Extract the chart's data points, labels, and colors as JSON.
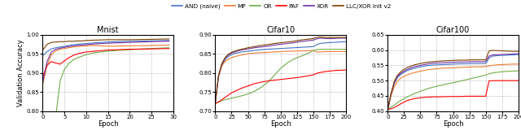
{
  "legend_labels": [
    "AND (naive)",
    "MP",
    "OR",
    "PAF",
    "XOR",
    "LLC/XOR init v2"
  ],
  "legend_colors": [
    "#4472c4",
    "#ed7d31",
    "#70ad47",
    "#ff0000",
    "#7030a0",
    "#7b3f00"
  ],
  "subplot_titles": [
    "Mnist",
    "Cifar10",
    "Cifar100"
  ],
  "ylabel": "Validation Accuracy",
  "xlabel": "Epoch",
  "mnist": {
    "xlim": [
      0,
      30
    ],
    "ylim": [
      0.8,
      1.0
    ],
    "xticks": [
      0,
      5,
      10,
      15,
      20,
      25,
      30
    ],
    "yticks": [
      0.8,
      0.85,
      0.9,
      0.95,
      1.0
    ],
    "curves": {
      "AND": {
        "x": [
          -1,
          0,
          1,
          2,
          3,
          4,
          5,
          6,
          7,
          8,
          9,
          10,
          12,
          15,
          20,
          25,
          29
        ],
        "y": [
          0.92,
          0.945,
          0.956,
          0.963,
          0.966,
          0.968,
          0.97,
          0.972,
          0.974,
          0.975,
          0.976,
          0.977,
          0.979,
          0.981,
          0.983,
          0.984,
          0.985
        ]
      },
      "MP": {
        "x": [
          -1,
          0,
          1,
          2,
          3,
          4,
          5,
          6,
          7,
          8,
          9,
          10,
          12,
          15,
          20,
          25,
          29
        ],
        "y": [
          0.82,
          0.87,
          0.92,
          0.948,
          0.958,
          0.962,
          0.964,
          0.966,
          0.968,
          0.969,
          0.97,
          0.971,
          0.972,
          0.97,
          0.971,
          0.972,
          0.973
        ]
      },
      "OR": {
        "x": [
          -1,
          0,
          1,
          2,
          3,
          4,
          5,
          6,
          7,
          8,
          9,
          10,
          12,
          15,
          20,
          25,
          29
        ],
        "y": [
          0.62,
          0.61,
          0.605,
          0.6,
          0.787,
          0.88,
          0.91,
          0.925,
          0.934,
          0.94,
          0.944,
          0.948,
          0.953,
          0.957,
          0.961,
          0.964,
          0.966
        ]
      },
      "PAF": {
        "x": [
          -1,
          0,
          1,
          2,
          3,
          4,
          5,
          6,
          7,
          8,
          9,
          10,
          12,
          15,
          20,
          25,
          29
        ],
        "y": [
          0.85,
          0.89,
          0.92,
          0.93,
          0.926,
          0.923,
          0.932,
          0.94,
          0.946,
          0.95,
          0.953,
          0.955,
          0.957,
          0.96,
          0.962,
          0.963,
          0.964
        ]
      },
      "XOR": {
        "x": [
          -1,
          0,
          1,
          2,
          3,
          4,
          5,
          6,
          7,
          8,
          9,
          10,
          12,
          15,
          20,
          25,
          29
        ],
        "y": [
          0.825,
          0.875,
          0.93,
          0.955,
          0.962,
          0.965,
          0.967,
          0.969,
          0.971,
          0.972,
          0.973,
          0.974,
          0.976,
          0.978,
          0.98,
          0.982,
          0.983
        ]
      },
      "LLC": {
        "x": [
          -1,
          0,
          1,
          2,
          3,
          4,
          5,
          6,
          7,
          8,
          9,
          10,
          12,
          15,
          20,
          25,
          29
        ],
        "y": [
          0.92,
          0.96,
          0.975,
          0.98,
          0.981,
          0.982,
          0.982,
          0.983,
          0.983,
          0.984,
          0.984,
          0.985,
          0.986,
          0.987,
          0.987,
          0.988,
          0.989
        ]
      }
    }
  },
  "cifar10": {
    "xlim": [
      0,
      200
    ],
    "ylim": [
      0.7,
      0.9
    ],
    "xticks": [
      0,
      25,
      50,
      75,
      100,
      125,
      150,
      175,
      200
    ],
    "yticks": [
      0.7,
      0.75,
      0.8,
      0.85,
      0.9
    ],
    "curves": {
      "AND": {
        "x": [
          0,
          5,
          10,
          15,
          20,
          25,
          30,
          35,
          40,
          50,
          60,
          70,
          80,
          90,
          100,
          110,
          120,
          130,
          140,
          150,
          155,
          160,
          170,
          180,
          190,
          200
        ],
        "y": [
          0.72,
          0.79,
          0.82,
          0.835,
          0.843,
          0.848,
          0.851,
          0.853,
          0.855,
          0.857,
          0.859,
          0.861,
          0.862,
          0.863,
          0.864,
          0.865,
          0.866,
          0.867,
          0.868,
          0.869,
          0.874,
          0.877,
          0.879,
          0.88,
          0.881,
          0.882
        ]
      },
      "MP": {
        "x": [
          0,
          5,
          10,
          15,
          20,
          25,
          30,
          35,
          40,
          50,
          60,
          70,
          80,
          90,
          100,
          110,
          120,
          130,
          140,
          150,
          155,
          160,
          170,
          180,
          190,
          200
        ],
        "y": [
          0.72,
          0.79,
          0.818,
          0.83,
          0.836,
          0.84,
          0.843,
          0.845,
          0.847,
          0.85,
          0.852,
          0.853,
          0.854,
          0.855,
          0.856,
          0.857,
          0.857,
          0.858,
          0.858,
          0.859,
          0.855,
          0.855,
          0.856,
          0.856,
          0.856,
          0.856
        ]
      },
      "OR": {
        "x": [
          0,
          5,
          10,
          15,
          20,
          25,
          30,
          35,
          40,
          50,
          60,
          70,
          80,
          90,
          100,
          110,
          120,
          130,
          140,
          150,
          155,
          160,
          170,
          180,
          190,
          200
        ],
        "y": [
          0.72,
          0.724,
          0.728,
          0.73,
          0.732,
          0.734,
          0.736,
          0.738,
          0.74,
          0.745,
          0.752,
          0.762,
          0.775,
          0.793,
          0.812,
          0.826,
          0.836,
          0.843,
          0.85,
          0.858,
          0.861,
          0.862,
          0.862,
          0.862,
          0.862,
          0.862
        ]
      },
      "PAF": {
        "x": [
          0,
          5,
          10,
          15,
          20,
          25,
          30,
          35,
          40,
          50,
          60,
          70,
          80,
          90,
          100,
          110,
          120,
          130,
          140,
          150,
          155,
          160,
          170,
          180,
          190,
          200
        ],
        "y": [
          0.72,
          0.724,
          0.73,
          0.736,
          0.742,
          0.748,
          0.752,
          0.756,
          0.76,
          0.766,
          0.772,
          0.776,
          0.779,
          0.781,
          0.783,
          0.785,
          0.787,
          0.789,
          0.792,
          0.795,
          0.799,
          0.801,
          0.804,
          0.806,
          0.807,
          0.808
        ]
      },
      "XOR": {
        "x": [
          0,
          5,
          10,
          15,
          20,
          25,
          30,
          35,
          40,
          50,
          60,
          70,
          80,
          90,
          100,
          110,
          120,
          130,
          140,
          150,
          155,
          160,
          170,
          180,
          190,
          200
        ],
        "y": [
          0.72,
          0.792,
          0.822,
          0.838,
          0.847,
          0.852,
          0.855,
          0.858,
          0.86,
          0.863,
          0.866,
          0.868,
          0.87,
          0.873,
          0.875,
          0.877,
          0.879,
          0.882,
          0.884,
          0.886,
          0.889,
          0.891,
          0.89,
          0.89,
          0.891,
          0.891
        ]
      },
      "LLC": {
        "x": [
          0,
          5,
          10,
          15,
          20,
          25,
          30,
          35,
          40,
          50,
          60,
          70,
          80,
          90,
          100,
          110,
          120,
          130,
          140,
          150,
          155,
          160,
          170,
          180,
          190,
          200
        ],
        "y": [
          0.72,
          0.793,
          0.824,
          0.84,
          0.849,
          0.854,
          0.857,
          0.86,
          0.862,
          0.866,
          0.869,
          0.872,
          0.874,
          0.877,
          0.879,
          0.881,
          0.883,
          0.886,
          0.888,
          0.89,
          0.893,
          0.894,
          0.893,
          0.893,
          0.893,
          0.893
        ]
      }
    }
  },
  "cifar100": {
    "xlim": [
      0,
      200
    ],
    "ylim": [
      0.4,
      0.65
    ],
    "xticks": [
      0,
      25,
      50,
      75,
      100,
      125,
      150,
      175,
      200
    ],
    "yticks": [
      0.4,
      0.45,
      0.5,
      0.55,
      0.6,
      0.65
    ],
    "curves": {
      "AND": {
        "x": [
          0,
          5,
          10,
          15,
          20,
          25,
          30,
          40,
          50,
          60,
          70,
          80,
          90,
          100,
          110,
          120,
          130,
          140,
          150,
          155,
          160,
          170,
          180,
          190,
          200
        ],
        "y": [
          0.405,
          0.455,
          0.49,
          0.51,
          0.52,
          0.527,
          0.533,
          0.54,
          0.545,
          0.549,
          0.551,
          0.552,
          0.553,
          0.554,
          0.555,
          0.555,
          0.556,
          0.556,
          0.556,
          0.574,
          0.58,
          0.582,
          0.583,
          0.584,
          0.585
        ]
      },
      "MP": {
        "x": [
          0,
          5,
          10,
          15,
          20,
          25,
          30,
          40,
          50,
          60,
          70,
          80,
          90,
          100,
          110,
          120,
          130,
          140,
          150,
          155,
          160,
          170,
          180,
          190,
          200
        ],
        "y": [
          0.405,
          0.45,
          0.48,
          0.498,
          0.508,
          0.514,
          0.519,
          0.526,
          0.531,
          0.535,
          0.538,
          0.54,
          0.541,
          0.542,
          0.543,
          0.544,
          0.545,
          0.545,
          0.546,
          0.548,
          0.55,
          0.552,
          0.553,
          0.554,
          0.554
        ]
      },
      "OR": {
        "x": [
          0,
          5,
          10,
          15,
          20,
          25,
          30,
          40,
          50,
          60,
          70,
          80,
          90,
          100,
          110,
          120,
          130,
          140,
          150,
          155,
          160,
          170,
          180,
          190,
          200
        ],
        "y": [
          0.405,
          0.413,
          0.42,
          0.428,
          0.435,
          0.441,
          0.447,
          0.457,
          0.465,
          0.473,
          0.479,
          0.484,
          0.489,
          0.493,
          0.498,
          0.503,
          0.508,
          0.513,
          0.518,
          0.522,
          0.525,
          0.528,
          0.53,
          0.531,
          0.532
        ]
      },
      "PAF": {
        "x": [
          0,
          5,
          10,
          15,
          20,
          25,
          30,
          40,
          50,
          60,
          70,
          80,
          90,
          100,
          110,
          120,
          130,
          140,
          150,
          155,
          160,
          170,
          180,
          190,
          200
        ],
        "y": [
          0.405,
          0.408,
          0.412,
          0.418,
          0.424,
          0.43,
          0.435,
          0.441,
          0.444,
          0.446,
          0.447,
          0.447,
          0.448,
          0.448,
          0.448,
          0.449,
          0.449,
          0.449,
          0.449,
          0.499,
          0.5,
          0.5,
          0.5,
          0.5,
          0.5
        ]
      },
      "XOR": {
        "x": [
          0,
          5,
          10,
          15,
          20,
          25,
          30,
          40,
          50,
          60,
          70,
          80,
          90,
          100,
          110,
          120,
          130,
          140,
          150,
          155,
          160,
          170,
          180,
          190,
          200
        ],
        "y": [
          0.405,
          0.455,
          0.493,
          0.514,
          0.524,
          0.531,
          0.537,
          0.545,
          0.55,
          0.554,
          0.557,
          0.558,
          0.559,
          0.56,
          0.561,
          0.561,
          0.562,
          0.562,
          0.562,
          0.58,
          0.584,
          0.585,
          0.586,
          0.587,
          0.588
        ]
      },
      "LLC": {
        "x": [
          0,
          5,
          10,
          15,
          20,
          25,
          30,
          40,
          50,
          60,
          70,
          80,
          90,
          100,
          110,
          120,
          130,
          140,
          150,
          155,
          160,
          170,
          180,
          190,
          200
        ],
        "y": [
          0.405,
          0.458,
          0.497,
          0.518,
          0.529,
          0.537,
          0.543,
          0.551,
          0.556,
          0.56,
          0.562,
          0.564,
          0.565,
          0.566,
          0.567,
          0.567,
          0.568,
          0.568,
          0.568,
          0.597,
          0.599,
          0.598,
          0.597,
          0.596,
          0.596
        ]
      }
    }
  }
}
